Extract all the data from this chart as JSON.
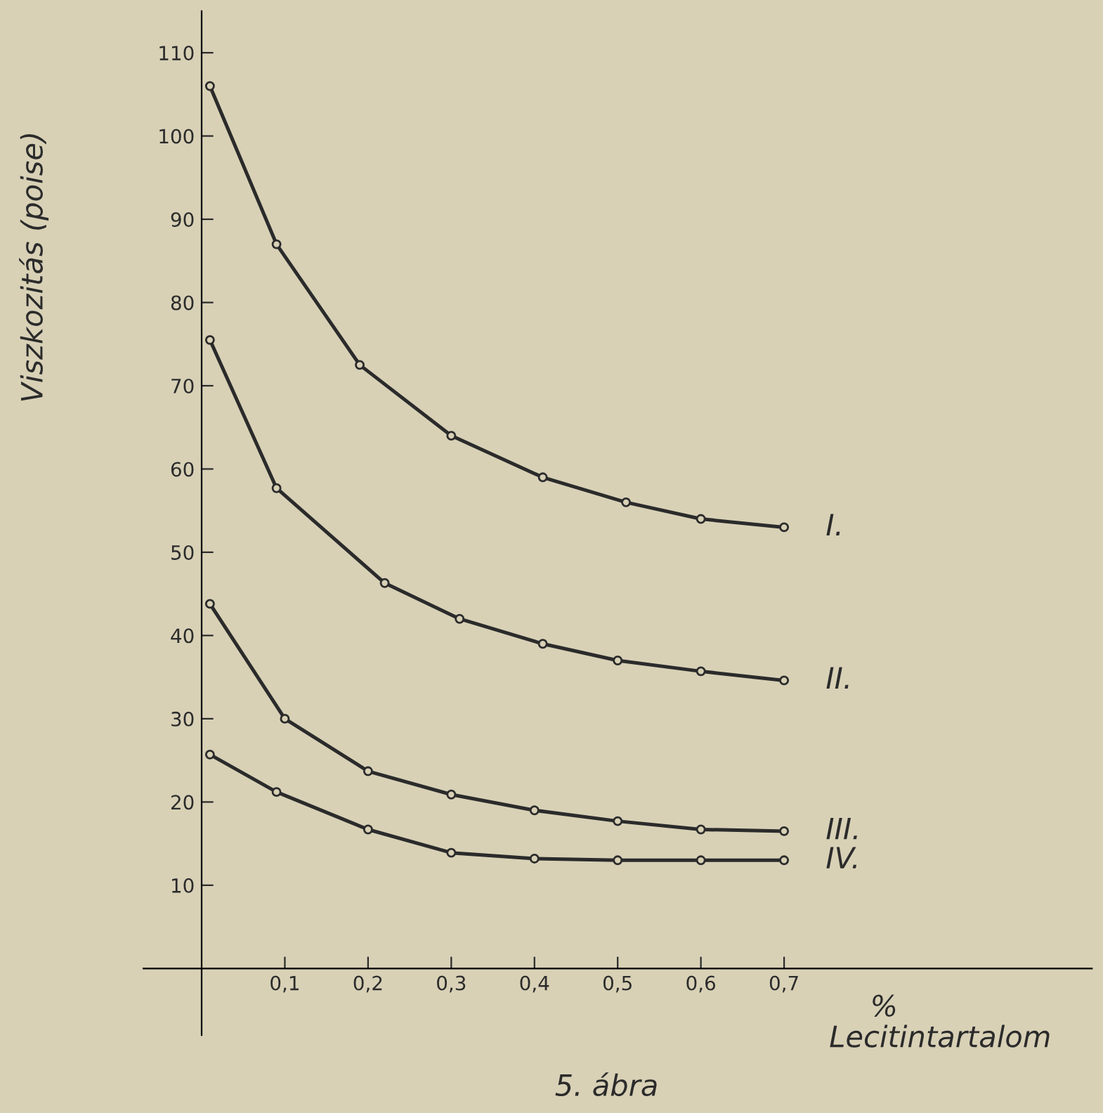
{
  "chart_data": {
    "type": "line",
    "title": "5. ábra",
    "xlabel": "Lecitintartalom",
    "ylabel": "Viszkozitás (poise)",
    "annotations": [
      "%"
    ],
    "series": [
      {
        "name": "I.",
        "color": "#2b2b2b",
        "x": [
          0.01,
          0.09,
          0.19,
          0.3,
          0.41,
          0.51,
          0.6,
          0.7
        ],
        "values": [
          106,
          87,
          72.5,
          64,
          59,
          56,
          54,
          53
        ]
      },
      {
        "name": "II.",
        "color": "#2b2b2b",
        "x": [
          0.01,
          0.09,
          0.22,
          0.31,
          0.41,
          0.5,
          0.6,
          0.7
        ],
        "values": [
          75.5,
          57.7,
          46.3,
          42,
          39,
          37,
          35.7,
          34.6
        ]
      },
      {
        "name": "III.",
        "color": "#2b2b2b",
        "x": [
          0.01,
          0.1,
          0.2,
          0.3,
          0.4,
          0.5,
          0.6,
          0.7
        ],
        "values": [
          43.8,
          30,
          23.7,
          20.9,
          19,
          17.7,
          16.7,
          16.5
        ]
      },
      {
        "name": "IV.",
        "color": "#2b2b2b",
        "x": [
          0.01,
          0.09,
          0.2,
          0.3,
          0.4,
          0.5,
          0.6,
          0.7
        ],
        "values": [
          25.7,
          21.2,
          16.7,
          13.9,
          13.2,
          13,
          13,
          13
        ]
      }
    ],
    "xlim": [
      -0.07,
      1.07
    ],
    "ylim": [
      -8,
      115
    ],
    "xticks": [
      {
        "value": 0.1,
        "label": "0,1"
      },
      {
        "value": 0.2,
        "label": "0,2"
      },
      {
        "value": 0.3,
        "label": "0,3"
      },
      {
        "value": 0.4,
        "label": "0,4"
      },
      {
        "value": 0.5,
        "label": "0,5"
      },
      {
        "value": 0.6,
        "label": "0,6"
      },
      {
        "value": 0.7,
        "label": "0,7"
      }
    ],
    "yticks": [
      10,
      20,
      30,
      40,
      50,
      60,
      70,
      80,
      90,
      100,
      110
    ],
    "marker": "circle",
    "line_style": "solid",
    "grid": false,
    "legend": false
  }
}
